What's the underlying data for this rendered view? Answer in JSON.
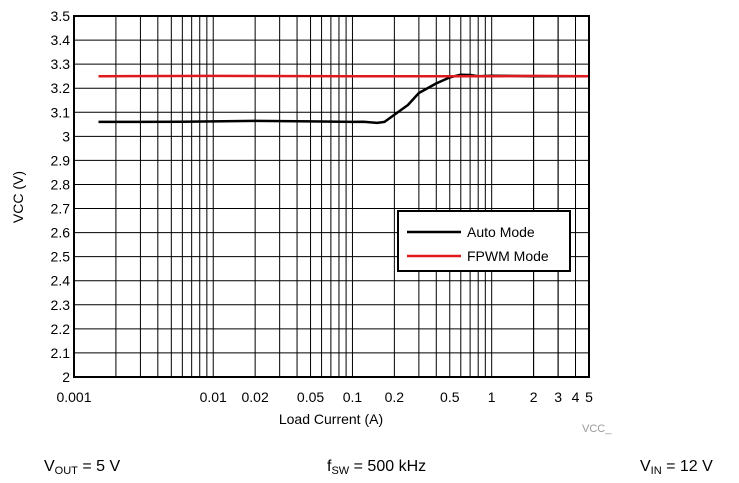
{
  "chart_data": {
    "type": "line",
    "title": "",
    "xlabel": "Load Current (A)",
    "ylabel": "VCC (V)",
    "xscale": "log",
    "xlim": [
      0.001,
      5
    ],
    "ylim": [
      2,
      3.5
    ],
    "grid": true,
    "legend_position": "right-center",
    "x_tick_labels": [
      {
        "value": 0.001,
        "label": "0.001"
      },
      {
        "value": 0.01,
        "label": "0.01"
      },
      {
        "value": 0.02,
        "label": "0.02"
      },
      {
        "value": 0.05,
        "label": "0.05"
      },
      {
        "value": 0.1,
        "label": "0.1"
      },
      {
        "value": 0.2,
        "label": "0.2"
      },
      {
        "value": 0.5,
        "label": "0.5"
      },
      {
        "value": 1,
        "label": "1"
      },
      {
        "value": 2,
        "label": "2"
      },
      {
        "value": 3,
        "label": "3"
      },
      {
        "value": 4,
        "label": "4"
      },
      {
        "value": 5,
        "label": "5"
      }
    ],
    "y_tick_labels": [
      "2",
      "2.1",
      "2.2",
      "2.3",
      "2.4",
      "2.5",
      "2.6",
      "2.7",
      "2.8",
      "2.9",
      "3",
      "3.1",
      "3.2",
      "3.3",
      "3.4",
      "3.5"
    ],
    "series": [
      {
        "name": "Auto Mode",
        "color": "#000000",
        "x": [
          0.0015,
          0.003,
          0.006,
          0.01,
          0.02,
          0.05,
          0.1,
          0.12,
          0.15,
          0.17,
          0.2,
          0.25,
          0.3,
          0.4,
          0.5,
          0.6,
          0.7,
          0.8,
          1,
          2,
          5
        ],
        "y": [
          3.06,
          3.06,
          3.061,
          3.062,
          3.064,
          3.062,
          3.06,
          3.061,
          3.056,
          3.06,
          3.09,
          3.13,
          3.18,
          3.22,
          3.245,
          3.256,
          3.255,
          3.25,
          3.252,
          3.25,
          3.25
        ]
      },
      {
        "name": "FPWM Mode",
        "color": "#e0191f",
        "x": [
          0.0015,
          0.01,
          0.1,
          0.5,
          1,
          2,
          5
        ],
        "y": [
          3.25,
          3.251,
          3.25,
          3.25,
          3.25,
          3.251,
          3.25
        ]
      }
    ]
  },
  "watermark": "VCC_",
  "conditions": [
    {
      "symbol": "V",
      "subscript": "OUT",
      "text": " = 5 V"
    },
    {
      "symbol": "f",
      "subscript": "SW",
      "text": " = 500 kHz"
    },
    {
      "symbol": "V",
      "subscript": "IN",
      "text": " = 12 V"
    }
  ]
}
